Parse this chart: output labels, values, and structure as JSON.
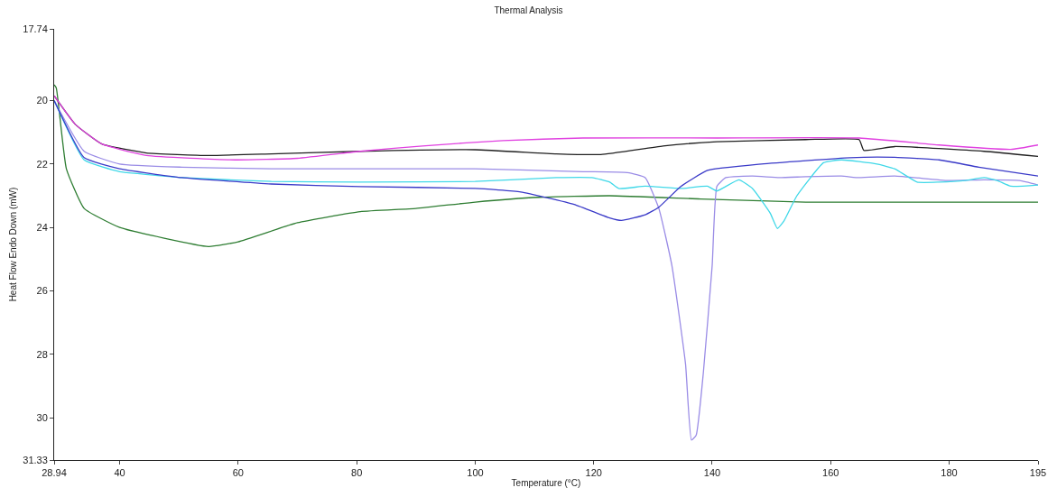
{
  "chart_data": {
    "type": "line",
    "title": "Thermal Analysis",
    "xlabel": "Temperature (°C)",
    "ylabel": "Heat Flow Endo Down (mW)",
    "xlim": [
      28.94,
      195
    ],
    "xticks": [
      28.94,
      40,
      60,
      80,
      100,
      120,
      140,
      160,
      180,
      195
    ],
    "ylim": [
      31.33,
      17.74
    ],
    "yticks": [
      17.74,
      20,
      22,
      24,
      26,
      28,
      30,
      31.33
    ],
    "marker": "none",
    "line_style": "solid",
    "series": [
      {
        "color": "#2e7d32",
        "x": [
          28.94,
          29.3,
          31,
          34,
          40,
          55,
          60,
          70,
          80.6,
          90,
          100,
          110.7,
          122.7,
          138,
          155.8,
          170.8,
          185.9,
          195
        ],
        "values": [
          19.5,
          19.6,
          22.15,
          23.4,
          24.0,
          24.6,
          24.45,
          23.85,
          23.5,
          23.4,
          23.2,
          23.05,
          23.0,
          23.1,
          23.2,
          23.2,
          23.2,
          23.2
        ]
      },
      {
        "color": "#202020",
        "x": [
          28.94,
          32.5,
          37,
          44.5,
          55,
          65.6,
          80.6,
          100,
          113.7,
          121.2,
          131.7,
          140.8,
          155.8,
          164.8,
          165.6,
          170.8,
          185.9,
          195
        ],
        "values": [
          19.85,
          20.75,
          21.37,
          21.65,
          21.73,
          21.68,
          21.6,
          21.55,
          21.68,
          21.7,
          21.43,
          21.3,
          21.23,
          21.23,
          21.57,
          21.45,
          21.6,
          21.76
        ]
      },
      {
        "color": "#e040e0",
        "x": [
          28.94,
          32.5,
          37,
          44.5,
          59.5,
          70,
          80.6,
          91.1,
          104.7,
          118.2,
          140.8,
          164.8,
          178.3,
          190.4,
          195
        ],
        "values": [
          19.85,
          20.75,
          21.37,
          21.73,
          21.87,
          21.82,
          21.6,
          21.43,
          21.26,
          21.18,
          21.18,
          21.18,
          21.4,
          21.54,
          21.4
        ]
      },
      {
        "color": "#9a8ce6",
        "x": [
          28.94,
          34,
          40,
          50.5,
          65.6,
          80.6,
          100,
          118.2,
          125.7,
          128.7,
          131,
          133.2,
          135.5,
          136.5,
          137.3,
          138.5,
          140,
          140.8,
          142.3,
          146.8,
          151.3,
          155.8,
          161.8,
          164.8,
          170.8,
          179.8,
          185.9,
          191.9,
          195
        ],
        "values": [
          20.0,
          21.6,
          22.0,
          22.1,
          22.15,
          22.15,
          22.15,
          22.24,
          22.27,
          22.43,
          23.4,
          25.2,
          28.3,
          30.7,
          30.55,
          28.6,
          25.2,
          22.7,
          22.43,
          22.38,
          22.43,
          22.4,
          22.38,
          22.43,
          22.38,
          22.52,
          22.5,
          22.52,
          22.66
        ]
      },
      {
        "color": "#40d8e8",
        "x": [
          28.94,
          34,
          40,
          43,
          50.5,
          65.6,
          80.6,
          100,
          113.7,
          119.7,
          122.7,
          124.2,
          128.7,
          134.7,
          139.2,
          140.8,
          144.5,
          146.8,
          149.8,
          151,
          152.1,
          154.3,
          158.8,
          161.8,
          167.8,
          170.8,
          174.6,
          178.3,
          182.8,
          185.9,
          188.1,
          190.4,
          195
        ],
        "values": [
          20.0,
          21.87,
          22.24,
          22.3,
          22.43,
          22.55,
          22.57,
          22.55,
          22.43,
          22.43,
          22.57,
          22.77,
          22.7,
          22.77,
          22.7,
          22.85,
          22.5,
          22.77,
          23.55,
          24.03,
          23.8,
          23.0,
          21.96,
          21.87,
          22.0,
          22.15,
          22.57,
          22.57,
          22.52,
          22.43,
          22.52,
          22.7,
          22.66
        ]
      },
      {
        "color": "#3a3ac8",
        "x": [
          28.94,
          34,
          40,
          50.5,
          65.6,
          80.6,
          100,
          107.7,
          116.7,
          122.7,
          124.7,
          128.7,
          131,
          134.7,
          139.2,
          148.3,
          163.3,
          170.8,
          178.3,
          185,
          195
        ],
        "values": [
          20.0,
          21.8,
          22.15,
          22.43,
          22.63,
          22.71,
          22.77,
          22.88,
          23.27,
          23.7,
          23.78,
          23.6,
          23.36,
          22.71,
          22.2,
          22.0,
          21.8,
          21.79,
          21.87,
          22.1,
          22.38
        ]
      }
    ]
  }
}
